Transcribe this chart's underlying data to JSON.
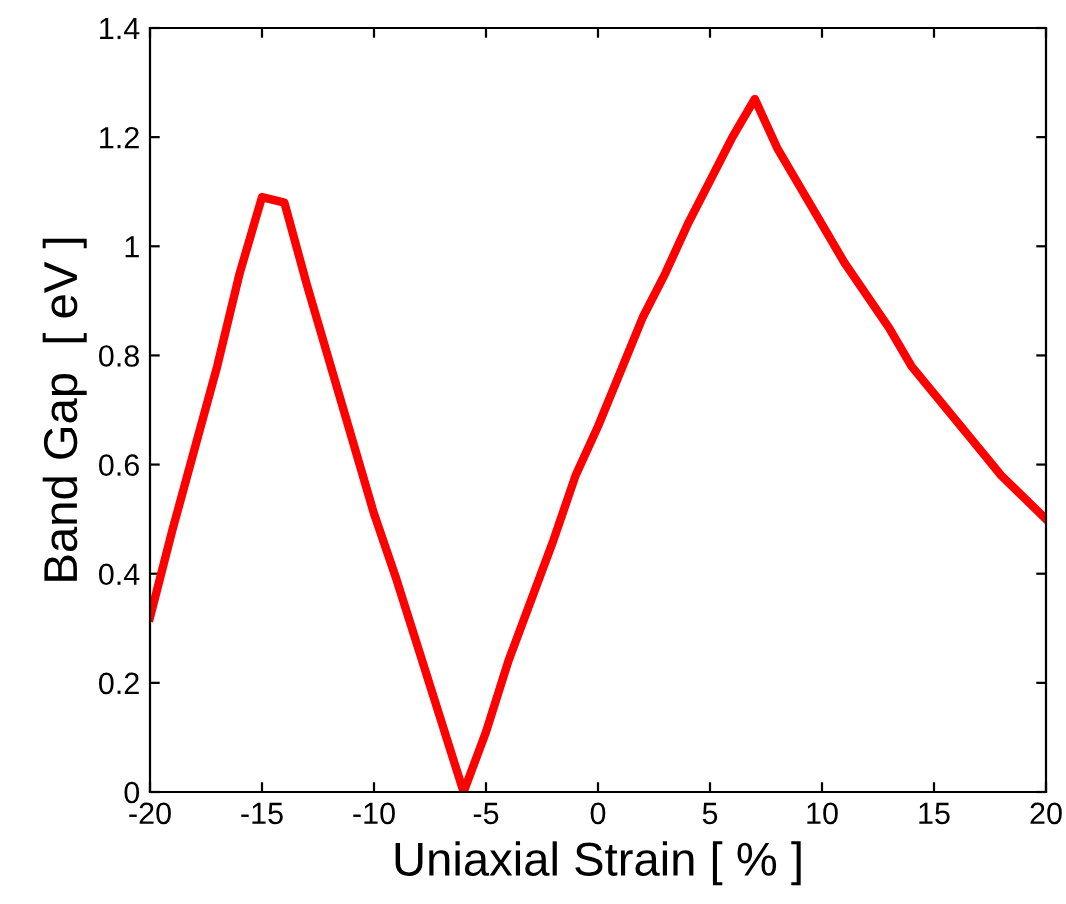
{
  "chart_data": {
    "type": "line",
    "xlabel": "Uniaxial Strain [ % ]",
    "ylabel": "Band Gap  [ eV ]",
    "x": [
      -20,
      -19,
      -18,
      -17,
      -16,
      -15,
      -14,
      -13,
      -12,
      -11,
      -10,
      -9,
      -8,
      -7,
      -6,
      -5,
      -4,
      -3,
      -2,
      -1,
      0,
      1,
      2,
      3,
      4,
      5,
      6,
      7,
      8,
      9,
      10,
      11,
      12,
      13,
      14,
      15,
      16,
      17,
      18,
      19,
      20
    ],
    "series": [
      {
        "color": "#ff0000",
        "values": [
          0.32,
          0.48,
          0.63,
          0.78,
          0.95,
          1.09,
          1.08,
          0.93,
          0.79,
          0.65,
          0.51,
          0.39,
          0.26,
          0.13,
          0.0,
          0.11,
          0.24,
          0.35,
          0.46,
          0.58,
          0.67,
          0.77,
          0.87,
          0.95,
          1.04,
          1.12,
          1.2,
          1.27,
          1.18,
          1.11,
          1.04,
          0.97,
          0.91,
          0.85,
          0.78,
          0.73,
          0.68,
          0.63,
          0.58,
          0.54,
          0.5
        ]
      }
    ],
    "xlim": [
      -20,
      20
    ],
    "xticks": [
      -20,
      -15,
      -10,
      -5,
      0,
      5,
      10,
      15,
      20
    ],
    "ylim": [
      0,
      1.4
    ],
    "yticks": [
      0,
      {
        "value": 0.2,
        "label": "0.2"
      },
      {
        "value": 0.4,
        "label": "0.4"
      },
      {
        "value": 0.6,
        "label": "0.6"
      },
      {
        "value": 0.8,
        "label": "0.8"
      },
      1,
      {
        "value": 1.2,
        "label": "1.2"
      },
      {
        "value": 1.4,
        "label": "1.4"
      }
    ],
    "grid": false,
    "legend": false,
    "marker": "none",
    "line_style": "solid"
  }
}
